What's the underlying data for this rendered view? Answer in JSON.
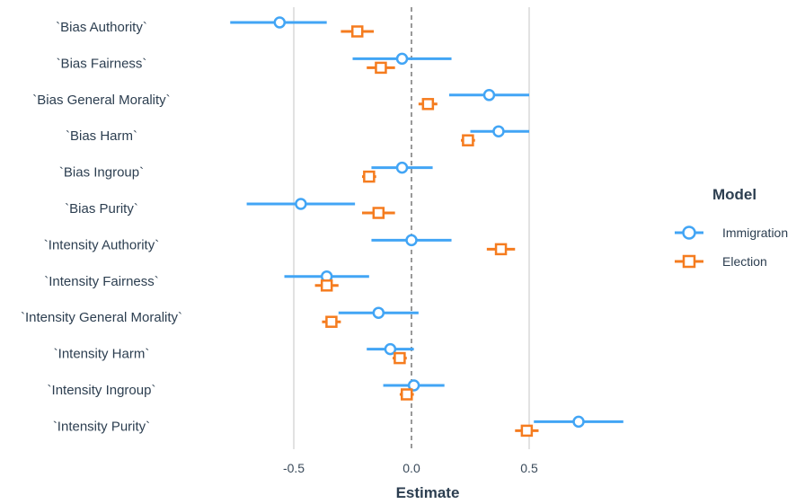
{
  "chart_data": {
    "type": "scatter",
    "subtype": "coefficient-plot-with-error-bars",
    "xlabel": "Estimate",
    "xticks": [
      -0.5,
      0.0,
      0.5
    ],
    "xtick_labels": [
      "-0.5",
      "0.0",
      "0.5"
    ],
    "xlim": [
      -1.0,
      0.95
    ],
    "reference_line": 0,
    "grid": true,
    "legend": {
      "title": "Model",
      "placement": "right"
    },
    "categories": [
      "`Bias Authority`",
      "`Bias Fairness`",
      "`Bias General Morality`",
      "`Bias Harm`",
      "`Bias Ingroup`",
      "`Bias Purity`",
      "`Intensity Authority`",
      "`Intensity Fairness`",
      "`Intensity General Morality`",
      "`Intensity Harm`",
      "`Intensity Ingroup`",
      "`Intensity Purity`"
    ],
    "series": [
      {
        "name": "Immigration",
        "marker": "circle",
        "color": "#42a5f5",
        "estimates": [
          -0.56,
          -0.04,
          0.33,
          0.37,
          -0.04,
          -0.47,
          0.0,
          -0.36,
          -0.14,
          -0.09,
          0.01,
          0.71
        ],
        "lower": [
          -0.77,
          -0.25,
          0.16,
          0.25,
          -0.17,
          -0.7,
          -0.17,
          -0.54,
          -0.31,
          -0.19,
          -0.12,
          0.52
        ],
        "upper": [
          -0.36,
          0.17,
          0.5,
          0.5,
          0.09,
          -0.24,
          0.17,
          -0.18,
          0.03,
          0.01,
          0.14,
          0.9
        ]
      },
      {
        "name": "Election",
        "marker": "square",
        "color": "#f57c1f",
        "estimates": [
          -0.23,
          -0.13,
          0.07,
          0.24,
          -0.18,
          -0.14,
          0.38,
          -0.36,
          -0.34,
          -0.05,
          -0.02,
          0.49
        ],
        "lower": [
          -0.3,
          -0.19,
          0.03,
          0.21,
          -0.21,
          -0.21,
          0.32,
          -0.41,
          -0.38,
          -0.08,
          -0.05,
          0.44
        ],
        "upper": [
          -0.16,
          -0.07,
          0.11,
          0.27,
          -0.15,
          -0.07,
          0.44,
          -0.31,
          -0.3,
          -0.02,
          0.01,
          0.54
        ]
      }
    ]
  }
}
